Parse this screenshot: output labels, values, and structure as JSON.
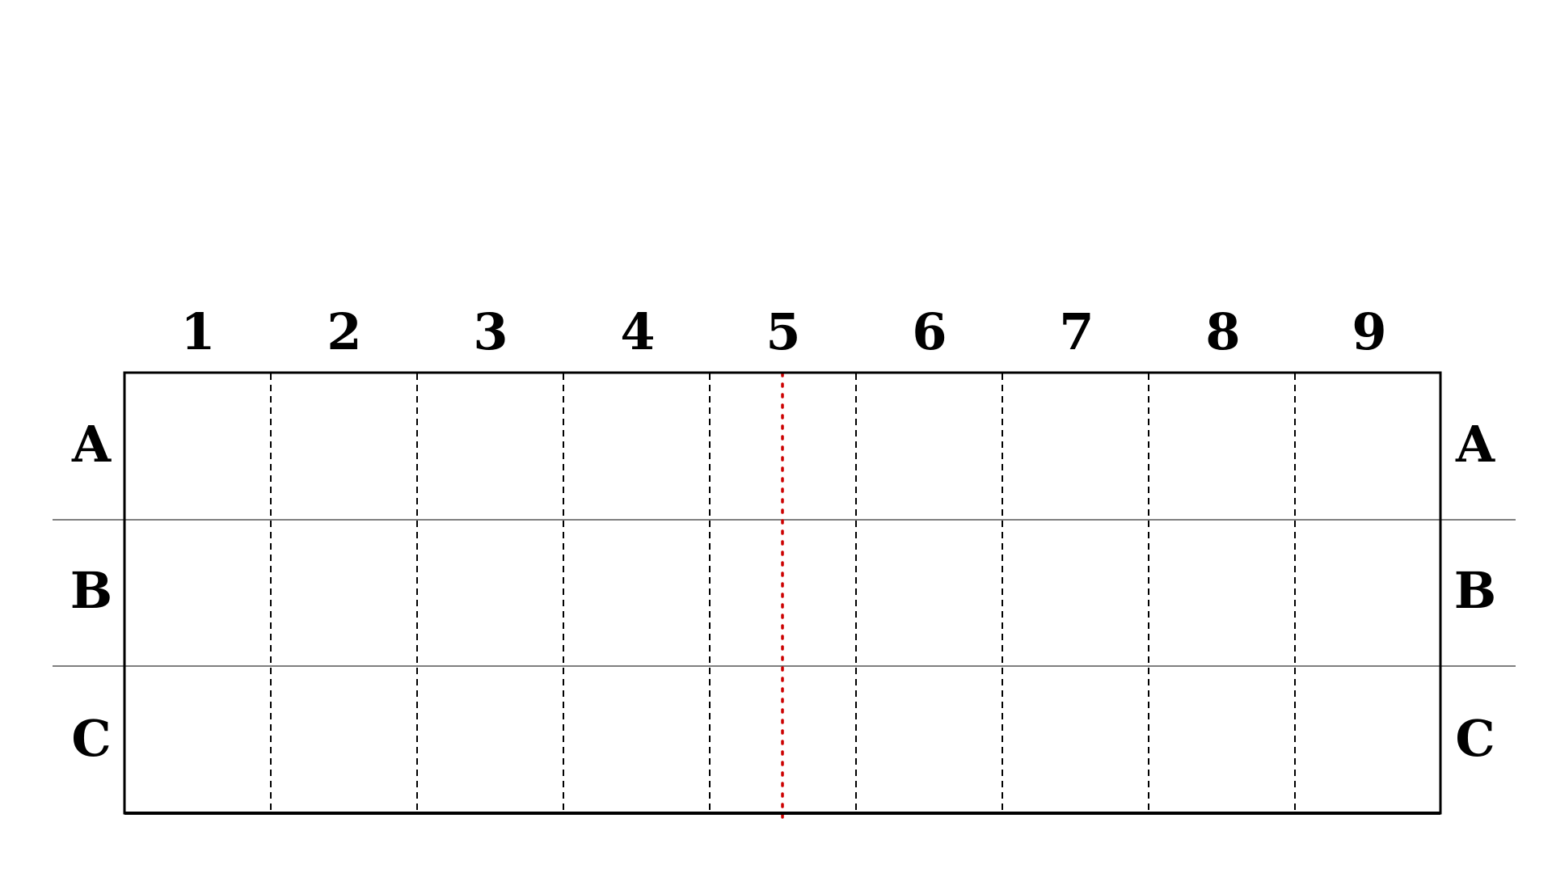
{
  "diagram": {
    "column_labels": [
      "1",
      "2",
      "3",
      "4",
      "5",
      "6",
      "7",
      "8",
      "9"
    ],
    "row_labels": [
      "A",
      "B",
      "C"
    ],
    "center_line_color": "#cc0000",
    "grid_line_color": "#000000",
    "row_divider_color": "#555555"
  }
}
